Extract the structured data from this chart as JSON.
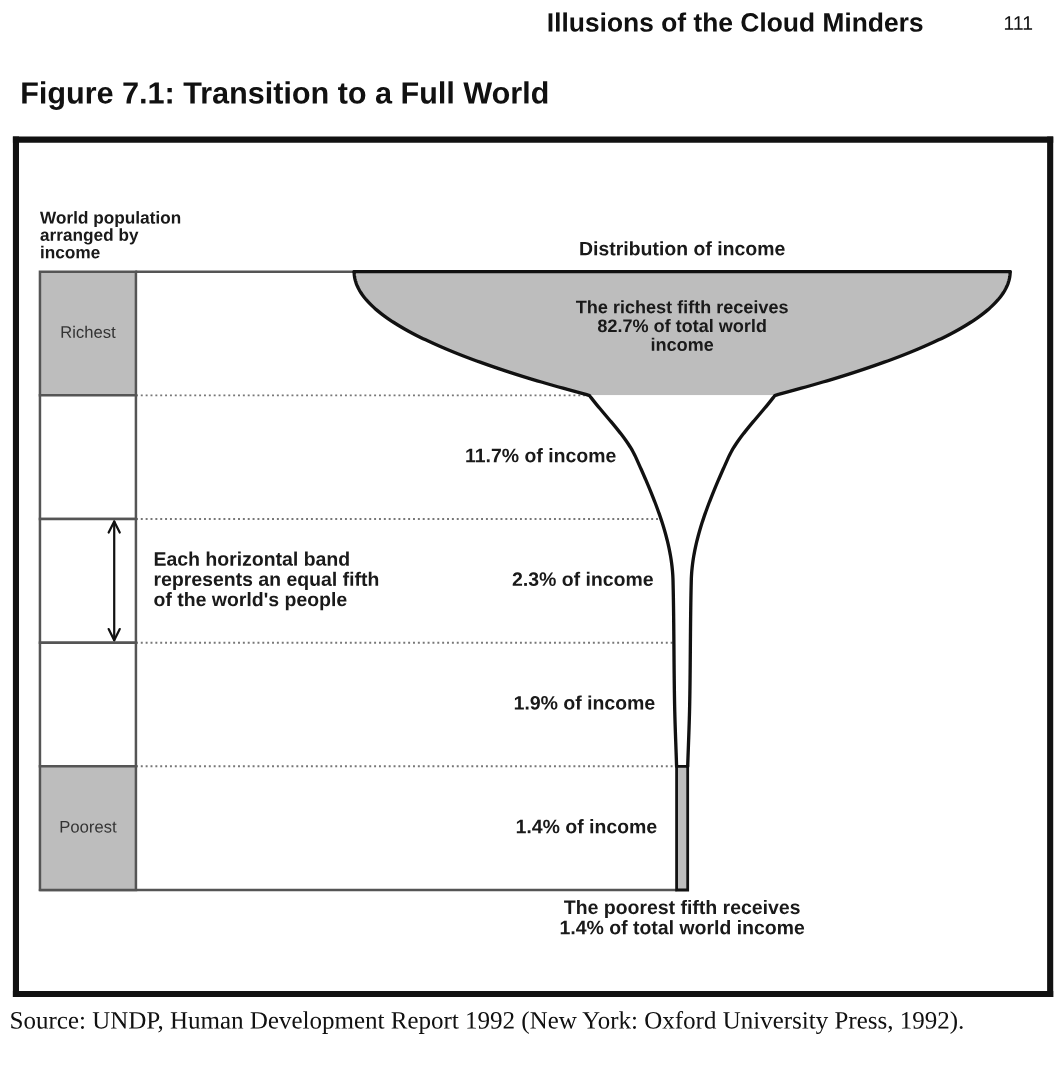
{
  "chart_data": {
    "type": "other",
    "title": "Figure 7.1: Transition to a Full World",
    "xlabel": "Distribution of income",
    "ylabel": "World population\narranged by\nincome",
    "categories": [
      "Richest",
      null,
      null,
      null,
      "Poorest"
    ],
    "values": [
      82.7,
      11.7,
      2.3,
      1.9,
      1.4
    ],
    "value_labels": [
      "The richest fifth receives\n82.7% of total world\nincome",
      "11.7% of income",
      "2.3% of income",
      "1.9% of income",
      "1.4% of income"
    ],
    "colors": [
      "#bdbdbd",
      "#ffffff",
      "#ffffff",
      "#ffffff",
      "#bdbdbd"
    ],
    "annotations": [
      "Each horizontal band\nrepresents an equal fifth\nof the world's people",
      "The poorest fifth receives\n1.4% of total world income",
      "Source: UNDP, Human Development Report 1992 (New York: Oxford University Press, 1992).",
      "Illusions of the Cloud Minders",
      "111"
    ]
  }
}
